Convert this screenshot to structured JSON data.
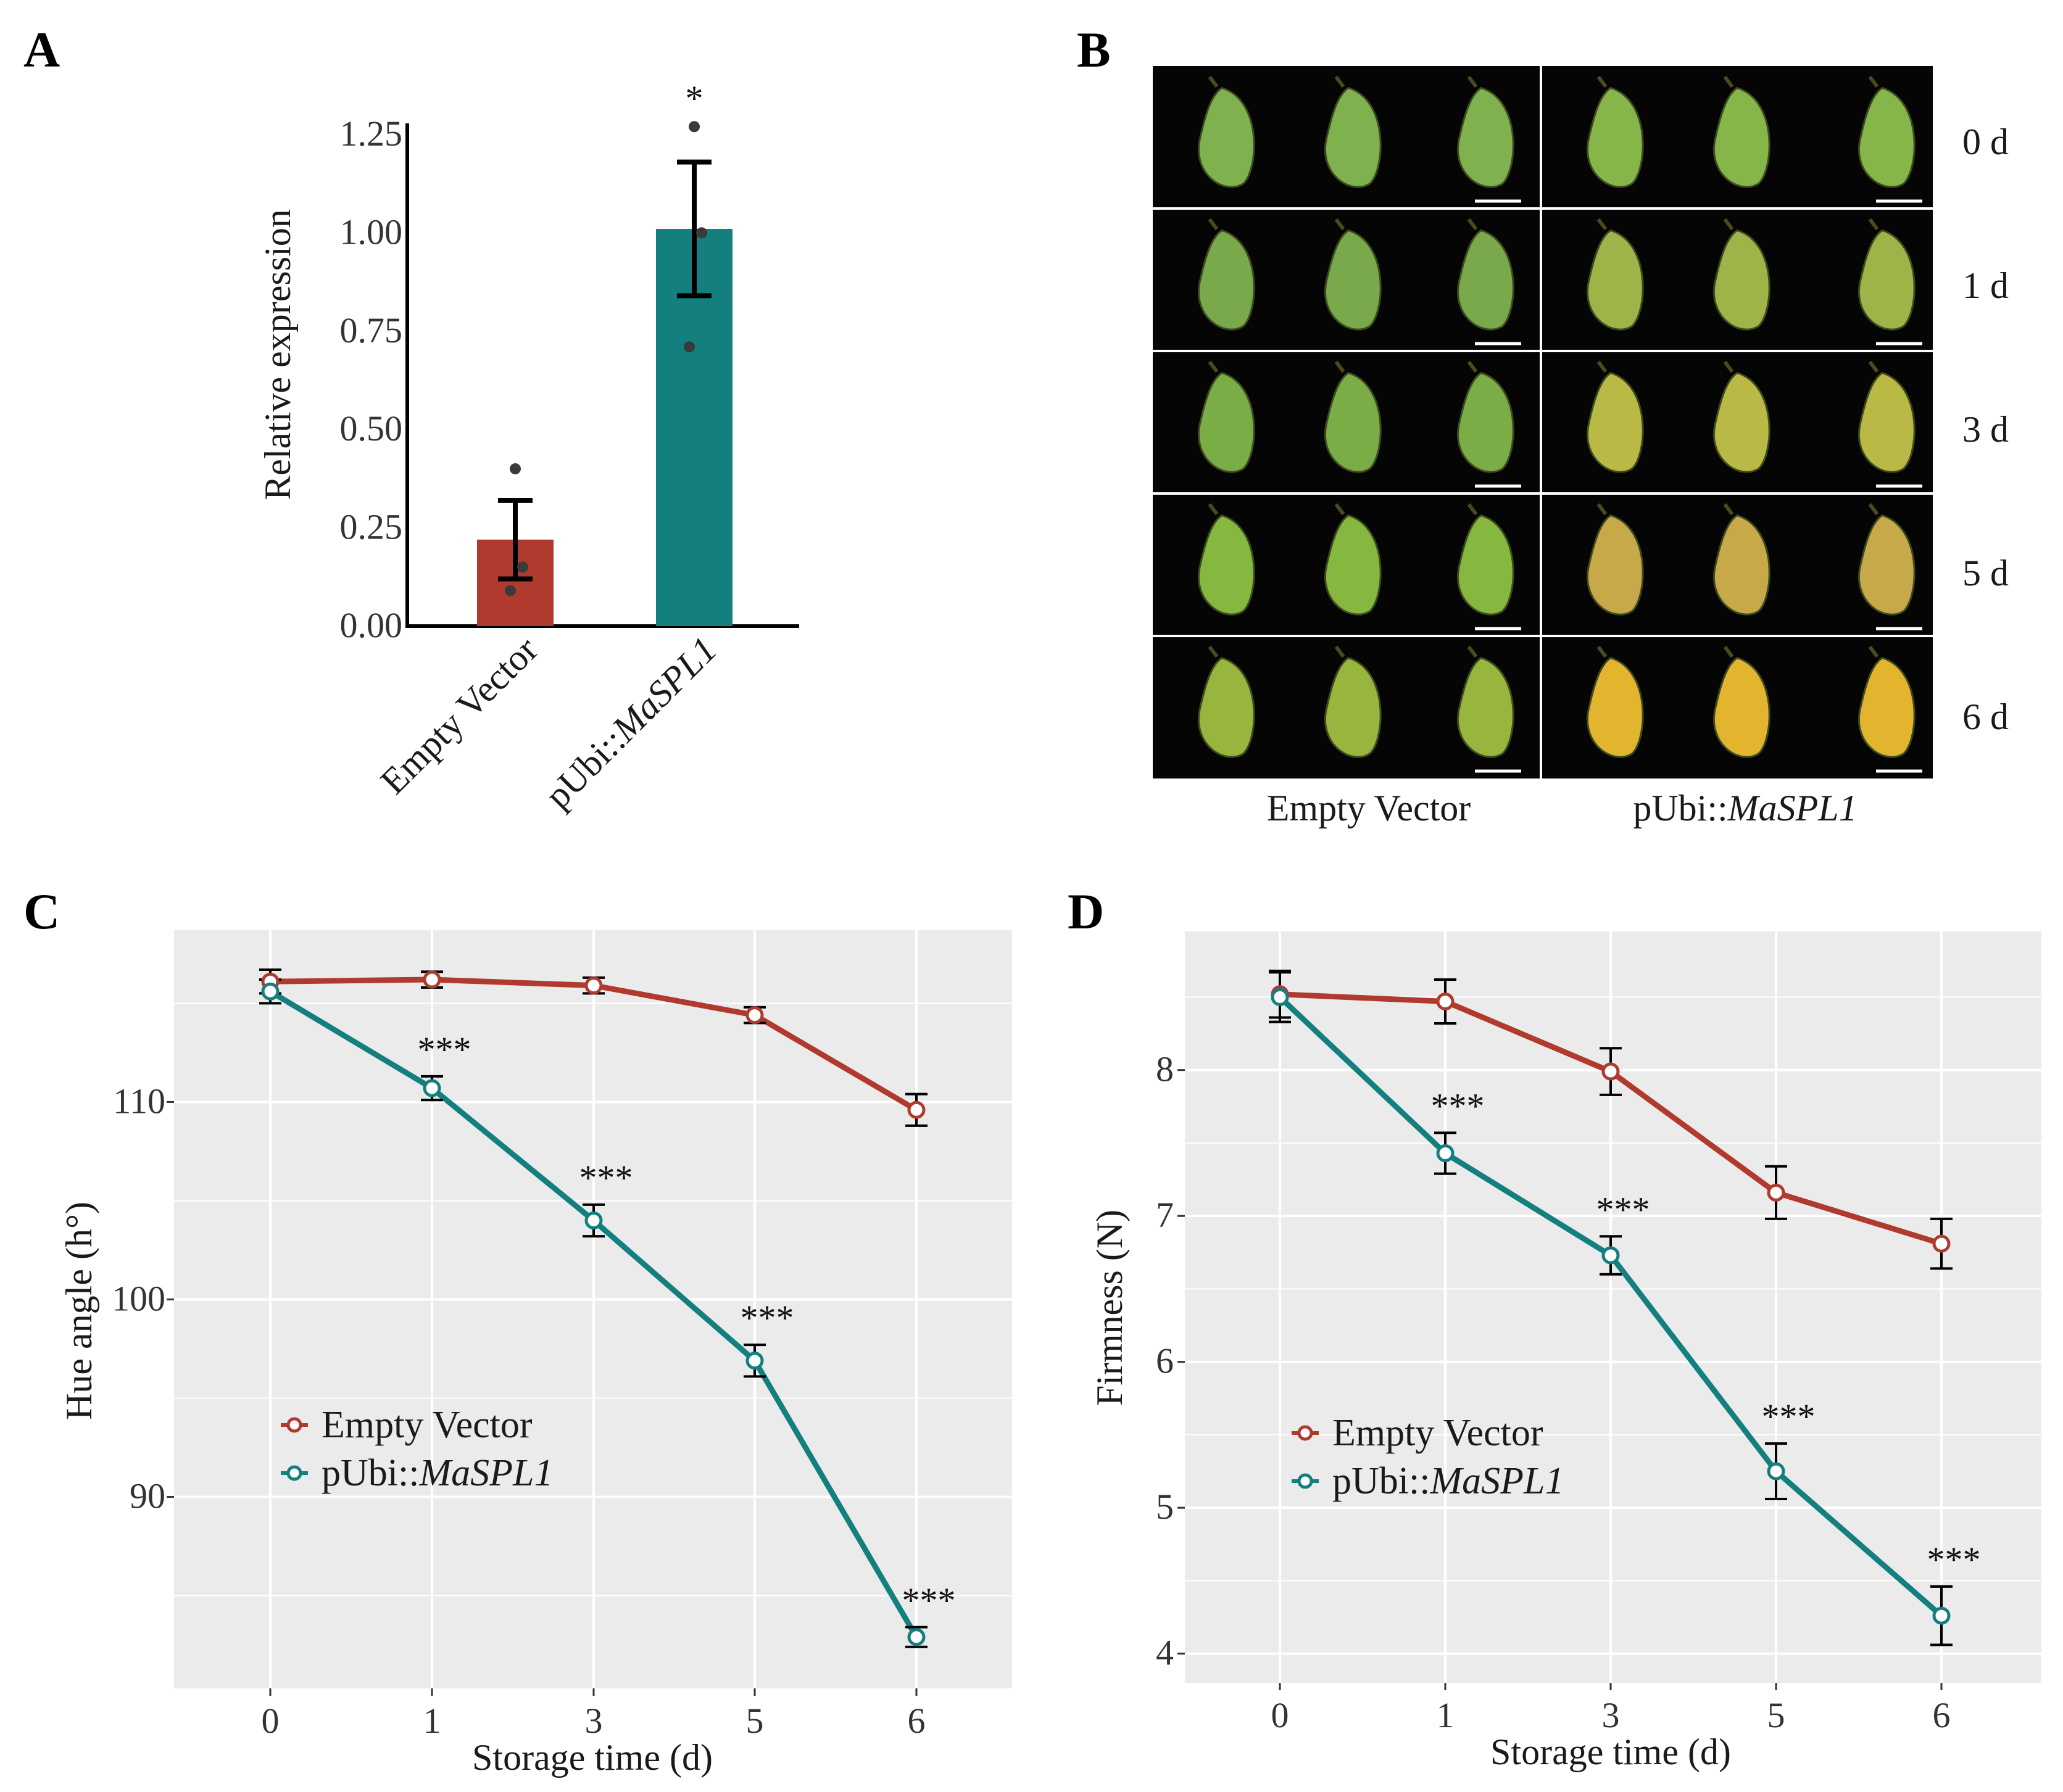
{
  "colors": {
    "empty_vector": "#b03a2e",
    "masp": "#137f7f",
    "panel_bg": "#ebebeb",
    "grid": "#ffffff",
    "photo_bg": "#050505"
  },
  "panels": {
    "A": {
      "letter": "A"
    },
    "B": {
      "letter": "B",
      "row_labels": [
        "0 d",
        "1 d",
        "3 d",
        "5 d",
        "6 d"
      ],
      "group_labels": {
        "left": "Empty Vector",
        "right_prefix": "pUbi::",
        "right_italic": "MaSPL1"
      }
    },
    "C": {
      "letter": "C"
    },
    "D": {
      "letter": "D"
    }
  },
  "legend": {
    "empty_vector": "Empty Vector",
    "masp_prefix": "pUbi::",
    "masp_italic": "MaSPL1"
  },
  "chart_data": [
    {
      "id": "A",
      "type": "bar",
      "ylabel": "Relative expression",
      "ylim": [
        0,
        1.25
      ],
      "yticks": [
        "0.00",
        "0.25",
        "0.50",
        "0.75",
        "1.00",
        "1.25"
      ],
      "categories": [
        "Empty Vector",
        "pUbi::MaSPL1"
      ],
      "values": [
        0.22,
        1.01
      ],
      "errors": [
        0.1,
        0.17
      ],
      "points": [
        [
          0.4,
          0.15,
          0.09
        ],
        [
          1.27,
          1.0,
          0.71
        ]
      ],
      "significance": [
        "",
        "*"
      ],
      "colors": [
        "#b03a2e",
        "#137f7f"
      ]
    },
    {
      "id": "C",
      "type": "line",
      "ylabel": "Hue angle (h°)",
      "xlabel": "Storage time (d)",
      "x": [
        "0",
        "1",
        "3",
        "5",
        "6"
      ],
      "yticks": [
        90,
        100,
        110
      ],
      "ylim": [
        80.3,
        118.7
      ],
      "series": [
        {
          "name": "Empty Vector",
          "values": [
            116.1,
            116.2,
            115.9,
            114.4,
            109.6
          ],
          "errors": [
            0.6,
            0.4,
            0.4,
            0.4,
            0.8
          ]
        },
        {
          "name": "pUbi::MaSPL1",
          "values": [
            115.6,
            110.7,
            104.0,
            96.9,
            82.9
          ],
          "errors": [
            0.6,
            0.6,
            0.8,
            0.8,
            0.5
          ]
        }
      ],
      "significance": [
        "",
        "***",
        "***",
        "***",
        "***"
      ]
    },
    {
      "id": "D",
      "type": "line",
      "ylabel": "Firmness (N)",
      "xlabel": "Storage time (d)",
      "x": [
        "0",
        "1",
        "3",
        "5",
        "6"
      ],
      "yticks": [
        4,
        5,
        6,
        7,
        8
      ],
      "ylim": [
        3.8,
        8.95
      ],
      "series": [
        {
          "name": "Empty Vector",
          "values": [
            8.52,
            8.47,
            7.99,
            7.16,
            6.81
          ],
          "errors": [
            0.16,
            0.15,
            0.16,
            0.18,
            0.17
          ]
        },
        {
          "name": "pUbi::MaSPL1",
          "values": [
            8.5,
            7.43,
            6.73,
            5.25,
            4.26
          ],
          "errors": [
            0.17,
            0.14,
            0.13,
            0.19,
            0.2
          ]
        }
      ],
      "significance": [
        "",
        "***",
        "***",
        "***",
        "***"
      ]
    }
  ]
}
